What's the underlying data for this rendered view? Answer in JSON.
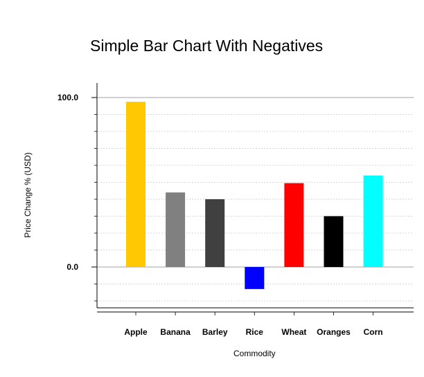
{
  "chart_data": {
    "type": "bar",
    "title": "Simple Bar Chart With Negatives",
    "xlabel": "Commodity",
    "ylabel": "Price Change % (USD)",
    "categories": [
      "Apple",
      "Banana",
      "Barley",
      "Rice",
      "Wheat",
      "Oranges",
      "Corn"
    ],
    "values": [
      97.5,
      44,
      40,
      -13,
      49.5,
      30,
      54
    ],
    "colors": [
      "#FFC800",
      "#808080",
      "#404040",
      "#0000FF",
      "#FF0000",
      "#000000",
      "#00FFFF"
    ],
    "yticks": [
      {
        "value": 0,
        "label": "0.0"
      },
      {
        "value": 100,
        "label": "100.0"
      }
    ],
    "ylim": [
      -24,
      105
    ],
    "grid": true,
    "grid_minor_step": 10
  }
}
